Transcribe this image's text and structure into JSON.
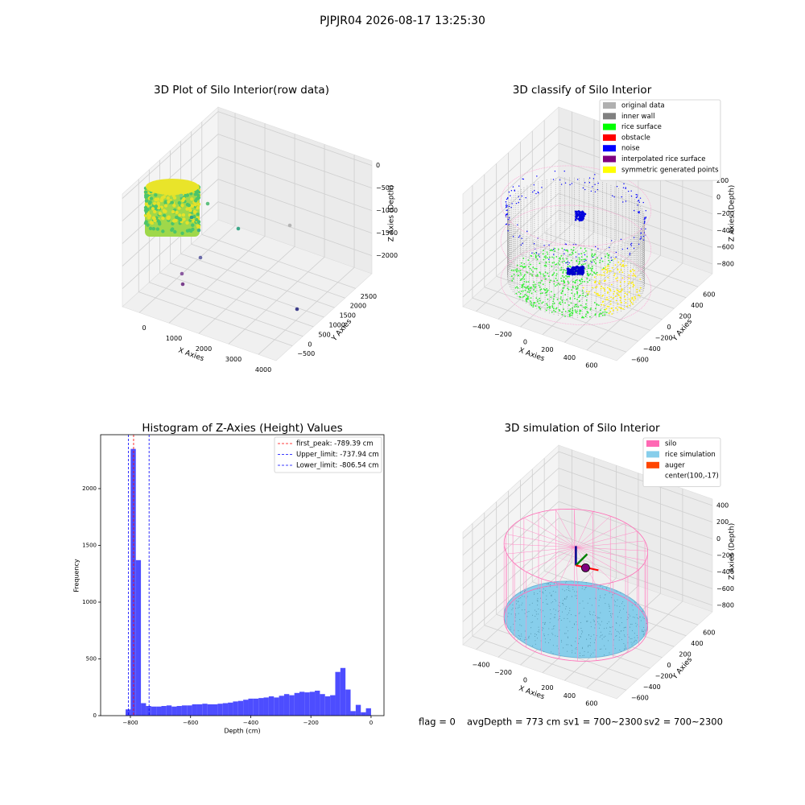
{
  "figure": {
    "title": "PJPJR04 2026-08-17 13:25:30",
    "status": [
      "flag = 0",
      "avgDepth = 773 cm",
      "sv1 = 700~2300",
      "sv2 = 700~2300"
    ]
  },
  "chart_data": [
    {
      "type": "scatter3d",
      "title": "3D Plot of Silo Interior(row data)",
      "xlabel": "X Axies",
      "ylabel": "Y Axies",
      "zlabel": "Z Axies (Depth)",
      "xlim": [
        -568,
        4593
      ],
      "ylim": [
        -1273,
        3272
      ],
      "zlim": [
        -2400,
        100
      ],
      "xticks": [
        0,
        1000,
        2000,
        3000,
        4000
      ],
      "yticks": [
        {
          "value": -500,
          "label": "−500"
        },
        0,
        500,
        1000,
        1500,
        2000,
        2500
      ],
      "zticks": [
        0,
        {
          "value": -500,
          "label": "−500"
        },
        {
          "value": -1000,
          "label": "−1000"
        },
        {
          "value": -1500,
          "label": "−1500"
        },
        {
          "value": -2000,
          "label": "−2000"
        }
      ]
    },
    {
      "type": "scatter3d",
      "title": "3D classify of Silo Interior",
      "xlabel": "X Axies",
      "ylabel": "Y Axies",
      "zlabel": "Z Axies (Depth)",
      "xlim": [
        -520,
        870
      ],
      "ylim": [
        -760,
        840
      ],
      "zlim": [
        -916,
        434
      ],
      "xticks": [
        {
          "value": -400,
          "label": "−400"
        },
        {
          "value": -200,
          "label": "−200"
        },
        0,
        200,
        400,
        600
      ],
      "yticks": [
        {
          "value": -600,
          "label": "−600"
        },
        {
          "value": -400,
          "label": "−400"
        },
        {
          "value": -200,
          "label": "−200"
        },
        0,
        200,
        400,
        600
      ],
      "zticks": [
        200,
        0,
        {
          "value": -200,
          "label": "−200"
        },
        {
          "value": -400,
          "label": "−400"
        },
        {
          "value": -600,
          "label": "−600"
        },
        {
          "value": -800,
          "label": "−800"
        }
      ],
      "legend": [
        {
          "label": "original data",
          "color": "#b0b0b0"
        },
        {
          "label": "inner wall",
          "color": "#808080"
        },
        {
          "label": "rice surface",
          "color": "#00ff00"
        },
        {
          "label": "obstacle",
          "color": "#ff0000"
        },
        {
          "label": "noise",
          "color": "#0000ff"
        },
        {
          "label": "interpolated rice surface",
          "color": "#800080"
        },
        {
          "label": "symmetric generated points",
          "color": "#ffff00"
        }
      ]
    },
    {
      "type": "histogram",
      "title": "Histogram of Z-Axies (Height) Values",
      "xlabel": "Depth (cm)",
      "ylabel": "Frequency",
      "color": "#4d4dff",
      "xlim": [
        -899,
        43
      ],
      "ylim": [
        0,
        2475
      ],
      "xticks": [
        {
          "value": -800,
          "label": "−800"
        },
        {
          "value": -600,
          "label": "−600"
        },
        {
          "value": -400,
          "label": "−400"
        },
        {
          "value": -200,
          "label": "−200"
        },
        0
      ],
      "yticks": [
        0,
        500,
        1000,
        1500,
        2000
      ],
      "bins": [
        -850,
        -833,
        -816,
        -799,
        -782,
        -765,
        -748,
        -731,
        -714,
        -697,
        -680,
        -663,
        -646,
        -629,
        -612,
        -595,
        -578,
        -561,
        -544,
        -527,
        -510,
        -493,
        -476,
        -459,
        -442,
        -425,
        -408,
        -391,
        -374,
        -357,
        -340,
        -323,
        -306,
        -289,
        -272,
        -255,
        -238,
        -221,
        -204,
        -187,
        -170,
        -153,
        -136,
        -119,
        -102,
        -85,
        -68,
        -51,
        -34,
        -17,
        0
      ],
      "counts": [
        0,
        0,
        55,
        2350,
        1370,
        110,
        85,
        80,
        80,
        85,
        90,
        80,
        85,
        90,
        90,
        100,
        100,
        105,
        100,
        100,
        105,
        110,
        115,
        125,
        130,
        140,
        150,
        150,
        155,
        160,
        170,
        160,
        175,
        190,
        180,
        200,
        210,
        205,
        210,
        220,
        190,
        170,
        180,
        385,
        420,
        230,
        40,
        95,
        30,
        65
      ],
      "vlines": [
        {
          "value": -789.39,
          "label": "first_peak: -789.39 cm",
          "color": "#ff0000"
        },
        {
          "value": -737.94,
          "label": "Upper_limit: -737.94 cm",
          "color": "#0000ff"
        },
        {
          "value": -806.54,
          "label": "Lower_limit: -806.54 cm",
          "color": "#0000ff"
        }
      ]
    },
    {
      "type": "wireframe3d",
      "title": "3D simulation of Silo Interior",
      "xlabel": "X Axies",
      "ylabel": "Y Axies",
      "zlabel": "Z Axies (Depth)",
      "xlim": [
        -520,
        870
      ],
      "ylim": [
        -760,
        840
      ],
      "zlim": [
        -877,
        477
      ],
      "xticks": [
        {
          "value": -400,
          "label": "−400"
        },
        {
          "value": -200,
          "label": "−200"
        },
        0,
        200,
        400,
        600
      ],
      "yticks": [
        {
          "value": -600,
          "label": "−600"
        },
        {
          "value": -400,
          "label": "−400"
        },
        {
          "value": -200,
          "label": "−200"
        },
        0,
        200,
        400,
        600
      ],
      "zticks": [
        400,
        200,
        0,
        {
          "value": -200,
          "label": "−200"
        },
        {
          "value": -400,
          "label": "−400"
        },
        {
          "value": -600,
          "label": "−600"
        },
        {
          "value": -800,
          "label": "−800"
        }
      ],
      "legend": [
        {
          "label": "silo",
          "color": "#ff69b4"
        },
        {
          "label": "rice simulation",
          "color": "#87ceeb"
        },
        {
          "label": "auger",
          "color": "#ff4500"
        },
        {
          "label": "center(100,-17)"
        }
      ]
    }
  ]
}
